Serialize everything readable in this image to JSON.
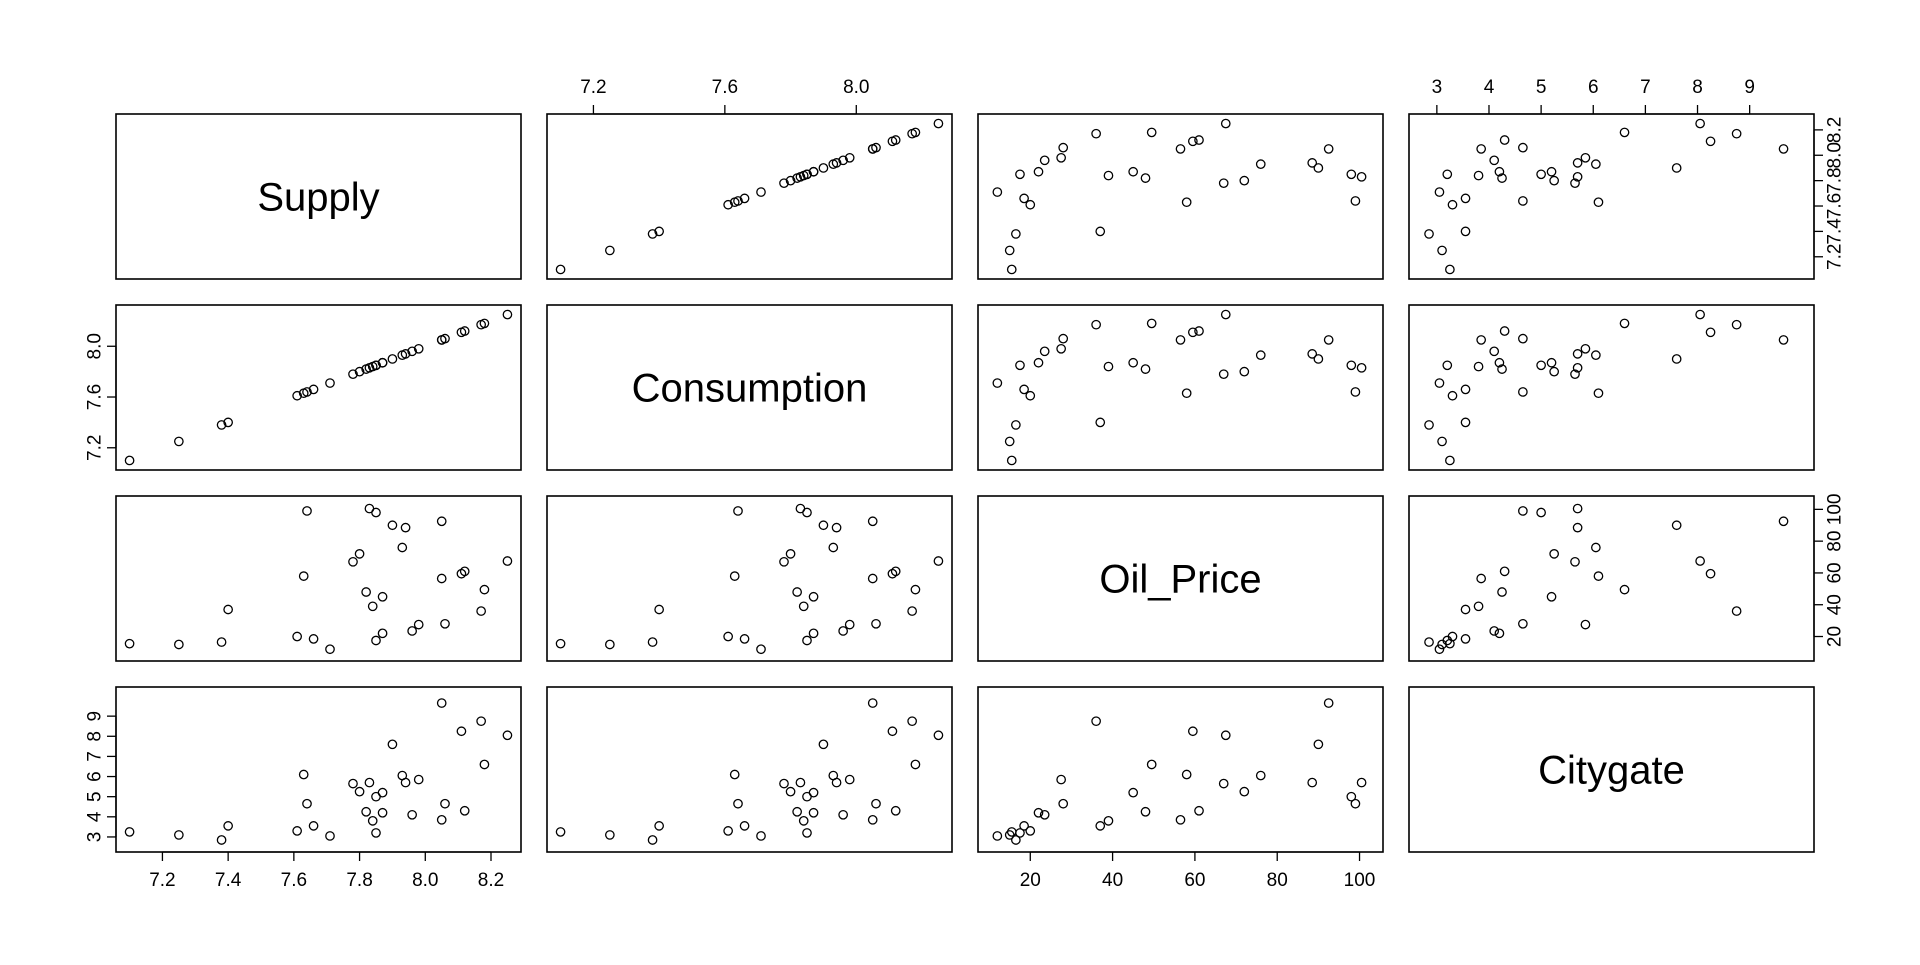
{
  "chart_data": {
    "type": "scatter",
    "layout": "scatterplot-matrix",
    "variables": [
      "Supply",
      "Consumption",
      "Oil_Price",
      "Citygate"
    ],
    "axes": {
      "Supply": {
        "range": [
          7.08,
          8.27
        ],
        "ticks": [
          7.2,
          7.4,
          7.6,
          7.8,
          8.0,
          8.2
        ],
        "tick_labels": [
          "7.2",
          "7.4",
          "7.6",
          "7.8",
          "8.0",
          "8.2"
        ]
      },
      "Consumption": {
        "range": [
          7.08,
          8.27
        ],
        "ticks": [
          7.2,
          7.6,
          8.0
        ],
        "tick_labels": [
          "7.2",
          "7.6",
          "8.0"
        ]
      },
      "Oil_Price": {
        "range": [
          9,
          104
        ],
        "ticks": [
          20,
          40,
          60,
          80,
          100
        ],
        "tick_labels": [
          "20",
          "40",
          "60",
          "80",
          "100"
        ]
      },
      "Citygate": {
        "range": [
          2.6,
          10.1
        ],
        "ticks": [
          3,
          4,
          5,
          6,
          7,
          8,
          9
        ],
        "tick_labels": [
          "3",
          "4",
          "5",
          "6",
          "7",
          "8",
          "9"
        ]
      }
    },
    "observations": [
      {
        "Supply": 7.1,
        "Consumption": 7.1,
        "Oil_Price": 15.5,
        "Citygate": 3.25
      },
      {
        "Supply": 7.25,
        "Consumption": 7.25,
        "Oil_Price": 15.0,
        "Citygate": 3.1
      },
      {
        "Supply": 7.38,
        "Consumption": 7.38,
        "Oil_Price": 16.5,
        "Citygate": 2.85
      },
      {
        "Supply": 7.4,
        "Consumption": 7.4,
        "Oil_Price": 37.0,
        "Citygate": 3.55
      },
      {
        "Supply": 7.61,
        "Consumption": 7.61,
        "Oil_Price": 20.0,
        "Citygate": 3.3
      },
      {
        "Supply": 7.63,
        "Consumption": 7.63,
        "Oil_Price": 58.0,
        "Citygate": 6.1
      },
      {
        "Supply": 7.64,
        "Consumption": 7.64,
        "Oil_Price": 99.0,
        "Citygate": 4.65
      },
      {
        "Supply": 7.66,
        "Consumption": 7.66,
        "Oil_Price": 18.5,
        "Citygate": 3.55
      },
      {
        "Supply": 7.71,
        "Consumption": 7.71,
        "Oil_Price": 12.0,
        "Citygate": 3.05
      },
      {
        "Supply": 7.78,
        "Consumption": 7.78,
        "Oil_Price": 67.0,
        "Citygate": 5.65
      },
      {
        "Supply": 7.8,
        "Consumption": 7.8,
        "Oil_Price": 72.0,
        "Citygate": 5.25
      },
      {
        "Supply": 7.82,
        "Consumption": 7.82,
        "Oil_Price": 48.0,
        "Citygate": 4.25
      },
      {
        "Supply": 7.83,
        "Consumption": 7.83,
        "Oil_Price": 100.5,
        "Citygate": 5.7
      },
      {
        "Supply": 7.84,
        "Consumption": 7.84,
        "Oil_Price": 39.0,
        "Citygate": 3.8
      },
      {
        "Supply": 7.85,
        "Consumption": 7.85,
        "Oil_Price": 17.5,
        "Citygate": 3.2
      },
      {
        "Supply": 7.85,
        "Consumption": 7.85,
        "Oil_Price": 98.0,
        "Citygate": 5.0
      },
      {
        "Supply": 7.87,
        "Consumption": 7.87,
        "Oil_Price": 22.0,
        "Citygate": 4.2
      },
      {
        "Supply": 7.87,
        "Consumption": 7.87,
        "Oil_Price": 45.0,
        "Citygate": 5.2
      },
      {
        "Supply": 7.9,
        "Consumption": 7.9,
        "Oil_Price": 90.0,
        "Citygate": 7.6
      },
      {
        "Supply": 7.93,
        "Consumption": 7.93,
        "Oil_Price": 76.0,
        "Citygate": 6.05
      },
      {
        "Supply": 7.94,
        "Consumption": 7.94,
        "Oil_Price": 88.5,
        "Citygate": 5.7
      },
      {
        "Supply": 7.96,
        "Consumption": 7.96,
        "Oil_Price": 23.5,
        "Citygate": 4.1
      },
      {
        "Supply": 7.98,
        "Consumption": 7.98,
        "Oil_Price": 27.5,
        "Citygate": 5.85
      },
      {
        "Supply": 8.05,
        "Consumption": 8.05,
        "Oil_Price": 92.5,
        "Citygate": 9.65
      },
      {
        "Supply": 8.05,
        "Consumption": 8.05,
        "Oil_Price": 56.5,
        "Citygate": 3.85
      },
      {
        "Supply": 8.06,
        "Consumption": 8.06,
        "Oil_Price": 28.0,
        "Citygate": 4.65
      },
      {
        "Supply": 8.11,
        "Consumption": 8.11,
        "Oil_Price": 59.5,
        "Citygate": 8.25
      },
      {
        "Supply": 8.12,
        "Consumption": 8.12,
        "Oil_Price": 61.0,
        "Citygate": 4.3
      },
      {
        "Supply": 8.17,
        "Consumption": 8.17,
        "Oil_Price": 36.0,
        "Citygate": 8.75
      },
      {
        "Supply": 8.18,
        "Consumption": 8.18,
        "Oil_Price": 49.5,
        "Citygate": 6.6
      },
      {
        "Supply": 8.25,
        "Consumption": 8.25,
        "Oil_Price": 67.5,
        "Citygate": 8.05
      }
    ],
    "title": "",
    "grid": false,
    "legend": "none"
  }
}
